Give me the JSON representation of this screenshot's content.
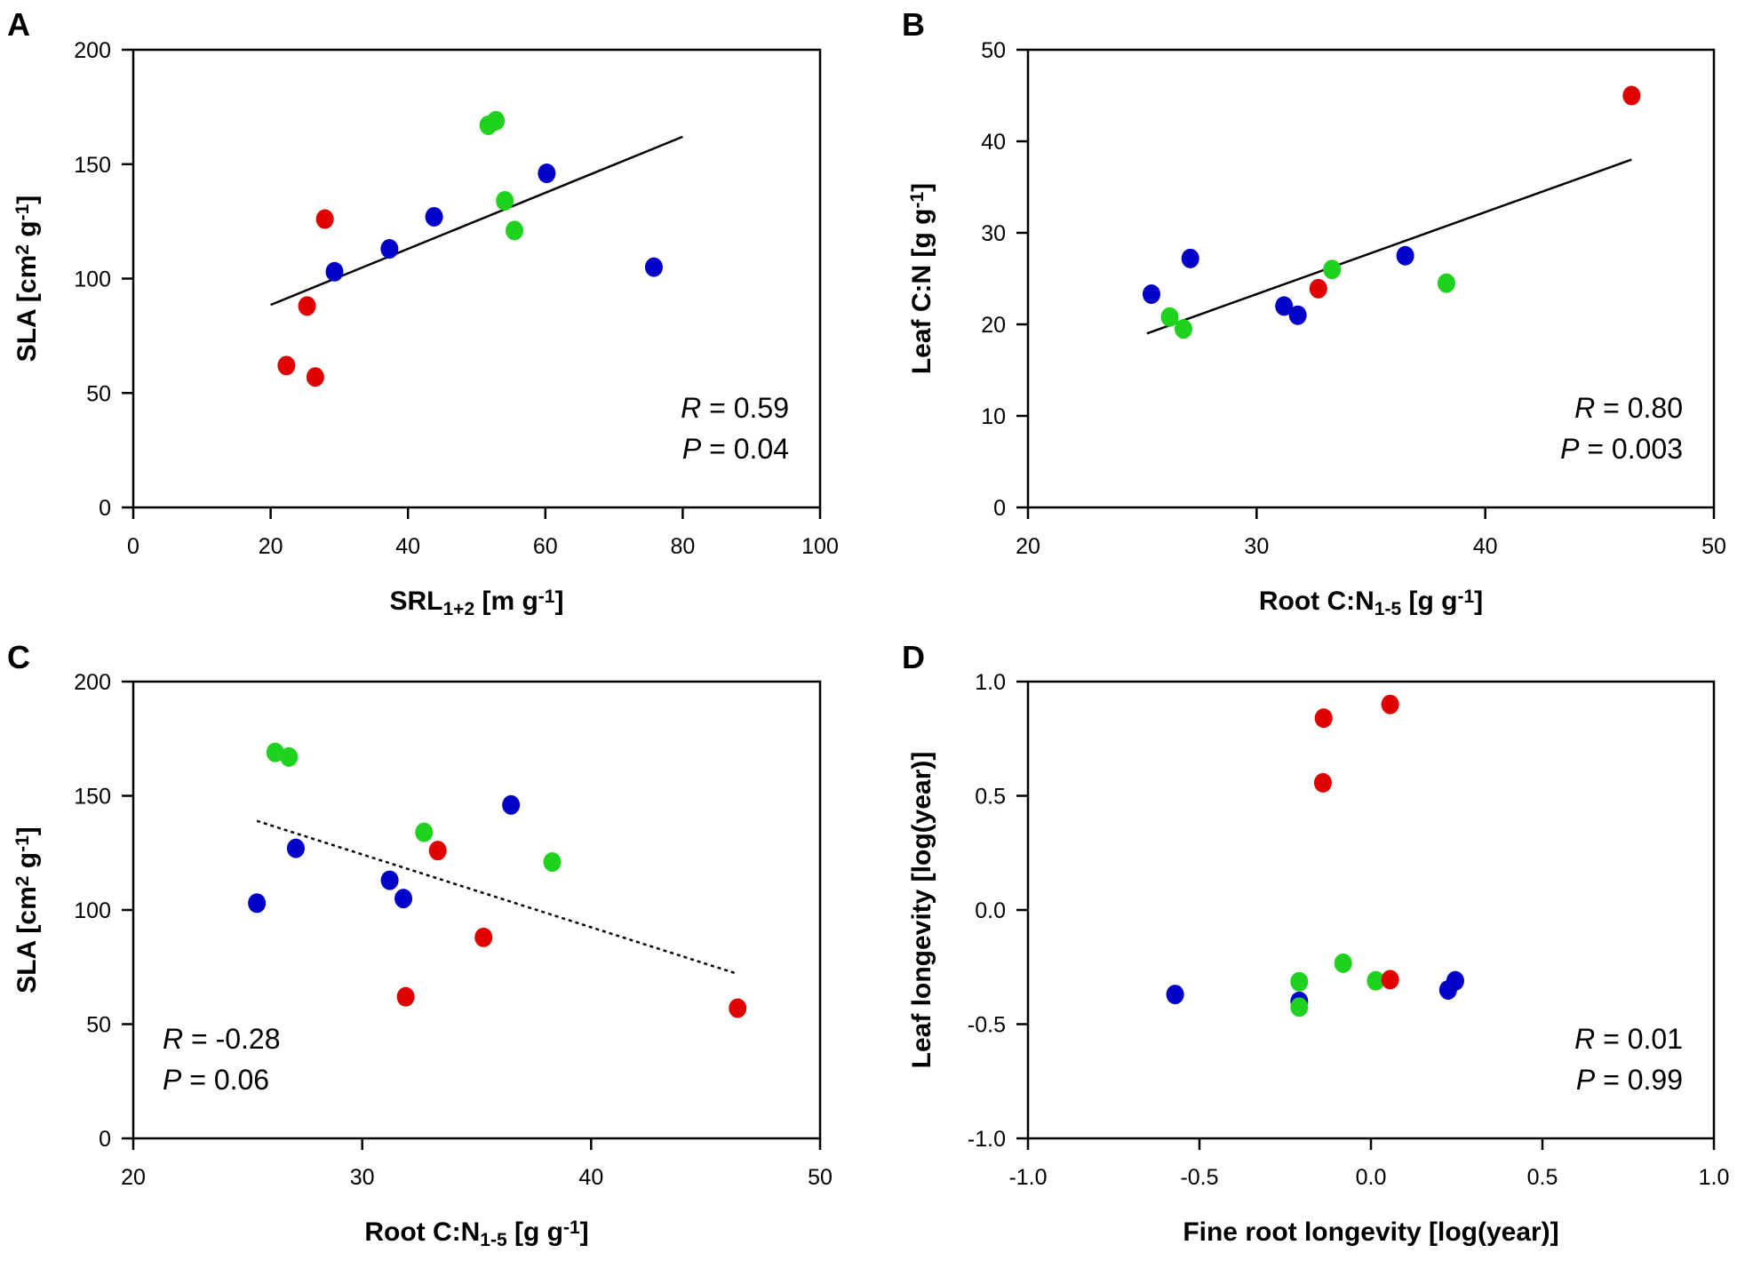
{
  "colors": {
    "red": "#e00000",
    "blue": "#0000c8",
    "green": "#1ed21e"
  },
  "chart_data": [
    {
      "type": "scatter",
      "panel": "A",
      "xlabel": [
        {
          "t": "SRL"
        },
        {
          "t": "1+2",
          "sub": true
        },
        {
          "t": " [m g"
        },
        {
          "t": "-1",
          "sup": true
        },
        {
          "t": "]"
        }
      ],
      "ylabel": [
        {
          "t": "SLA [cm"
        },
        {
          "t": "2",
          "sup": true
        },
        {
          "t": " g"
        },
        {
          "t": "-1",
          "sup": true
        },
        {
          "t": "]"
        }
      ],
      "xlim": [
        0,
        100
      ],
      "ylim": [
        0,
        200
      ],
      "xticks": [
        0,
        20,
        40,
        60,
        80,
        100
      ],
      "xtick_labels": [
        "0",
        "20",
        "40",
        "60",
        "80",
        "100"
      ],
      "yticks": [
        0,
        50,
        100,
        150,
        200
      ],
      "ytick_labels": [
        "0",
        "50",
        "100",
        "150",
        "200"
      ],
      "series": [
        {
          "name": "red",
          "points": [
            [
              22.3,
              62
            ],
            [
              25.3,
              88
            ],
            [
              26.5,
              57
            ],
            [
              27.9,
              126
            ]
          ]
        },
        {
          "name": "blue",
          "points": [
            [
              29.3,
              103
            ],
            [
              37.3,
              113
            ],
            [
              43.8,
              127
            ],
            [
              60.2,
              146
            ],
            [
              75.8,
              105
            ]
          ]
        },
        {
          "name": "green",
          "points": [
            [
              51.7,
              167
            ],
            [
              52.8,
              169
            ],
            [
              54.1,
              134
            ],
            [
              55.5,
              121
            ]
          ]
        }
      ],
      "fit": {
        "x": [
          20,
          80
        ],
        "y": [
          88.5,
          162
        ],
        "style": "solid"
      },
      "stats": {
        "R": "0.59",
        "P": "0.04",
        "position": "bottom-right"
      }
    },
    {
      "type": "scatter",
      "panel": "B",
      "xlabel": [
        {
          "t": "Root C:N"
        },
        {
          "t": "1-5",
          "sub": true
        },
        {
          "t": " [g g"
        },
        {
          "t": "-1",
          "sup": true
        },
        {
          "t": "]"
        }
      ],
      "ylabel": [
        {
          "t": "Leaf C:N [g g"
        },
        {
          "t": "-1",
          "sup": true
        },
        {
          "t": "]"
        }
      ],
      "xlim": [
        20,
        50
      ],
      "ylim": [
        0,
        50
      ],
      "xticks": [
        20,
        30,
        40,
        50
      ],
      "xtick_labels": [
        "20",
        "30",
        "40",
        "50"
      ],
      "yticks": [
        0,
        10,
        20,
        30,
        40,
        50
      ],
      "ytick_labels": [
        "0",
        "10",
        "20",
        "30",
        "40",
        "50"
      ],
      "series": [
        {
          "name": "blue",
          "points": [
            [
              25.4,
              23.3
            ],
            [
              27.1,
              27.2
            ],
            [
              31.2,
              22
            ],
            [
              31.8,
              21
            ],
            [
              36.5,
              27.5
            ]
          ]
        },
        {
          "name": "green",
          "points": [
            [
              26.2,
              20.8
            ],
            [
              26.8,
              19.5
            ],
            [
              33.3,
              26
            ],
            [
              38.3,
              24.5
            ]
          ]
        },
        {
          "name": "red",
          "points": [
            [
              32.7,
              23.9
            ],
            [
              46.4,
              45
            ]
          ]
        }
      ],
      "fit": {
        "x": [
          25.2,
          46.4
        ],
        "y": [
          19,
          38
        ],
        "style": "solid"
      },
      "stats": {
        "R": "0.80",
        "P": "0.003",
        "position": "bottom-right"
      }
    },
    {
      "type": "scatter",
      "panel": "C",
      "xlabel": [
        {
          "t": "Root C:N"
        },
        {
          "t": "1-5",
          "sub": true
        },
        {
          "t": " [g g"
        },
        {
          "t": "-1",
          "sup": true
        },
        {
          "t": "]"
        }
      ],
      "ylabel": [
        {
          "t": "SLA [cm"
        },
        {
          "t": "2",
          "sup": true
        },
        {
          "t": " g"
        },
        {
          "t": "-1",
          "sup": true
        },
        {
          "t": "]"
        }
      ],
      "xlim": [
        20,
        50
      ],
      "ylim": [
        0,
        200
      ],
      "xticks": [
        20,
        30,
        40,
        50
      ],
      "xtick_labels": [
        "20",
        "30",
        "40",
        "50"
      ],
      "yticks": [
        0,
        50,
        100,
        150,
        200
      ],
      "ytick_labels": [
        "0",
        "50",
        "100",
        "150",
        "200"
      ],
      "series": [
        {
          "name": "green",
          "points": [
            [
              26.2,
              169
            ],
            [
              26.8,
              167
            ],
            [
              32.7,
              134
            ],
            [
              38.3,
              121
            ]
          ]
        },
        {
          "name": "blue",
          "points": [
            [
              25.4,
              103
            ],
            [
              27.1,
              127
            ],
            [
              31.2,
              113
            ],
            [
              31.8,
              105
            ],
            [
              36.5,
              146
            ]
          ]
        },
        {
          "name": "red",
          "points": [
            [
              33.3,
              126
            ],
            [
              35.3,
              88
            ],
            [
              31.9,
              62
            ],
            [
              46.4,
              57
            ]
          ]
        }
      ],
      "fit": {
        "x": [
          25.4,
          46.4
        ],
        "y": [
          139,
          72
        ],
        "style": "dotted"
      },
      "stats": {
        "R": "-0.28",
        "P": "0.06",
        "position": "bottom-left"
      }
    },
    {
      "type": "scatter",
      "panel": "D",
      "xlabel": [
        {
          "t": "Fine root longevity [log(year)]"
        }
      ],
      "ylabel": [
        {
          "t": "Leaf longevity [log(year)]"
        }
      ],
      "xlim": [
        -1,
        1
      ],
      "ylim": [
        -1,
        1
      ],
      "xticks": [
        -1,
        -0.5,
        0,
        0.5,
        1
      ],
      "xtick_labels": [
        "-1.0",
        "-0.5",
        "0.0",
        "0.5",
        "1.0"
      ],
      "yticks": [
        -1,
        -0.5,
        0,
        0.5,
        1
      ],
      "ytick_labels": [
        "-1.0",
        "-0.5",
        "0.0",
        "0.5",
        "1.0"
      ],
      "series": [
        {
          "name": "blue",
          "points": [
            [
              -0.571,
              -0.37
            ],
            [
              -0.209,
              -0.4
            ],
            [
              0.225,
              -0.35
            ],
            [
              0.246,
              -0.31
            ]
          ]
        },
        {
          "name": "green",
          "points": [
            [
              -0.081,
              -0.233
            ],
            [
              -0.209,
              -0.314
            ],
            [
              -0.209,
              -0.425
            ],
            [
              0.014,
              -0.31
            ]
          ]
        },
        {
          "name": "red",
          "points": [
            [
              -0.138,
              0.84
            ],
            [
              0.056,
              0.9
            ],
            [
              -0.14,
              0.557
            ],
            [
              0.056,
              -0.305
            ]
          ]
        }
      ],
      "fit": null,
      "stats": {
        "R": "0.01",
        "P": "0.99",
        "position": "bottom-right"
      }
    }
  ]
}
